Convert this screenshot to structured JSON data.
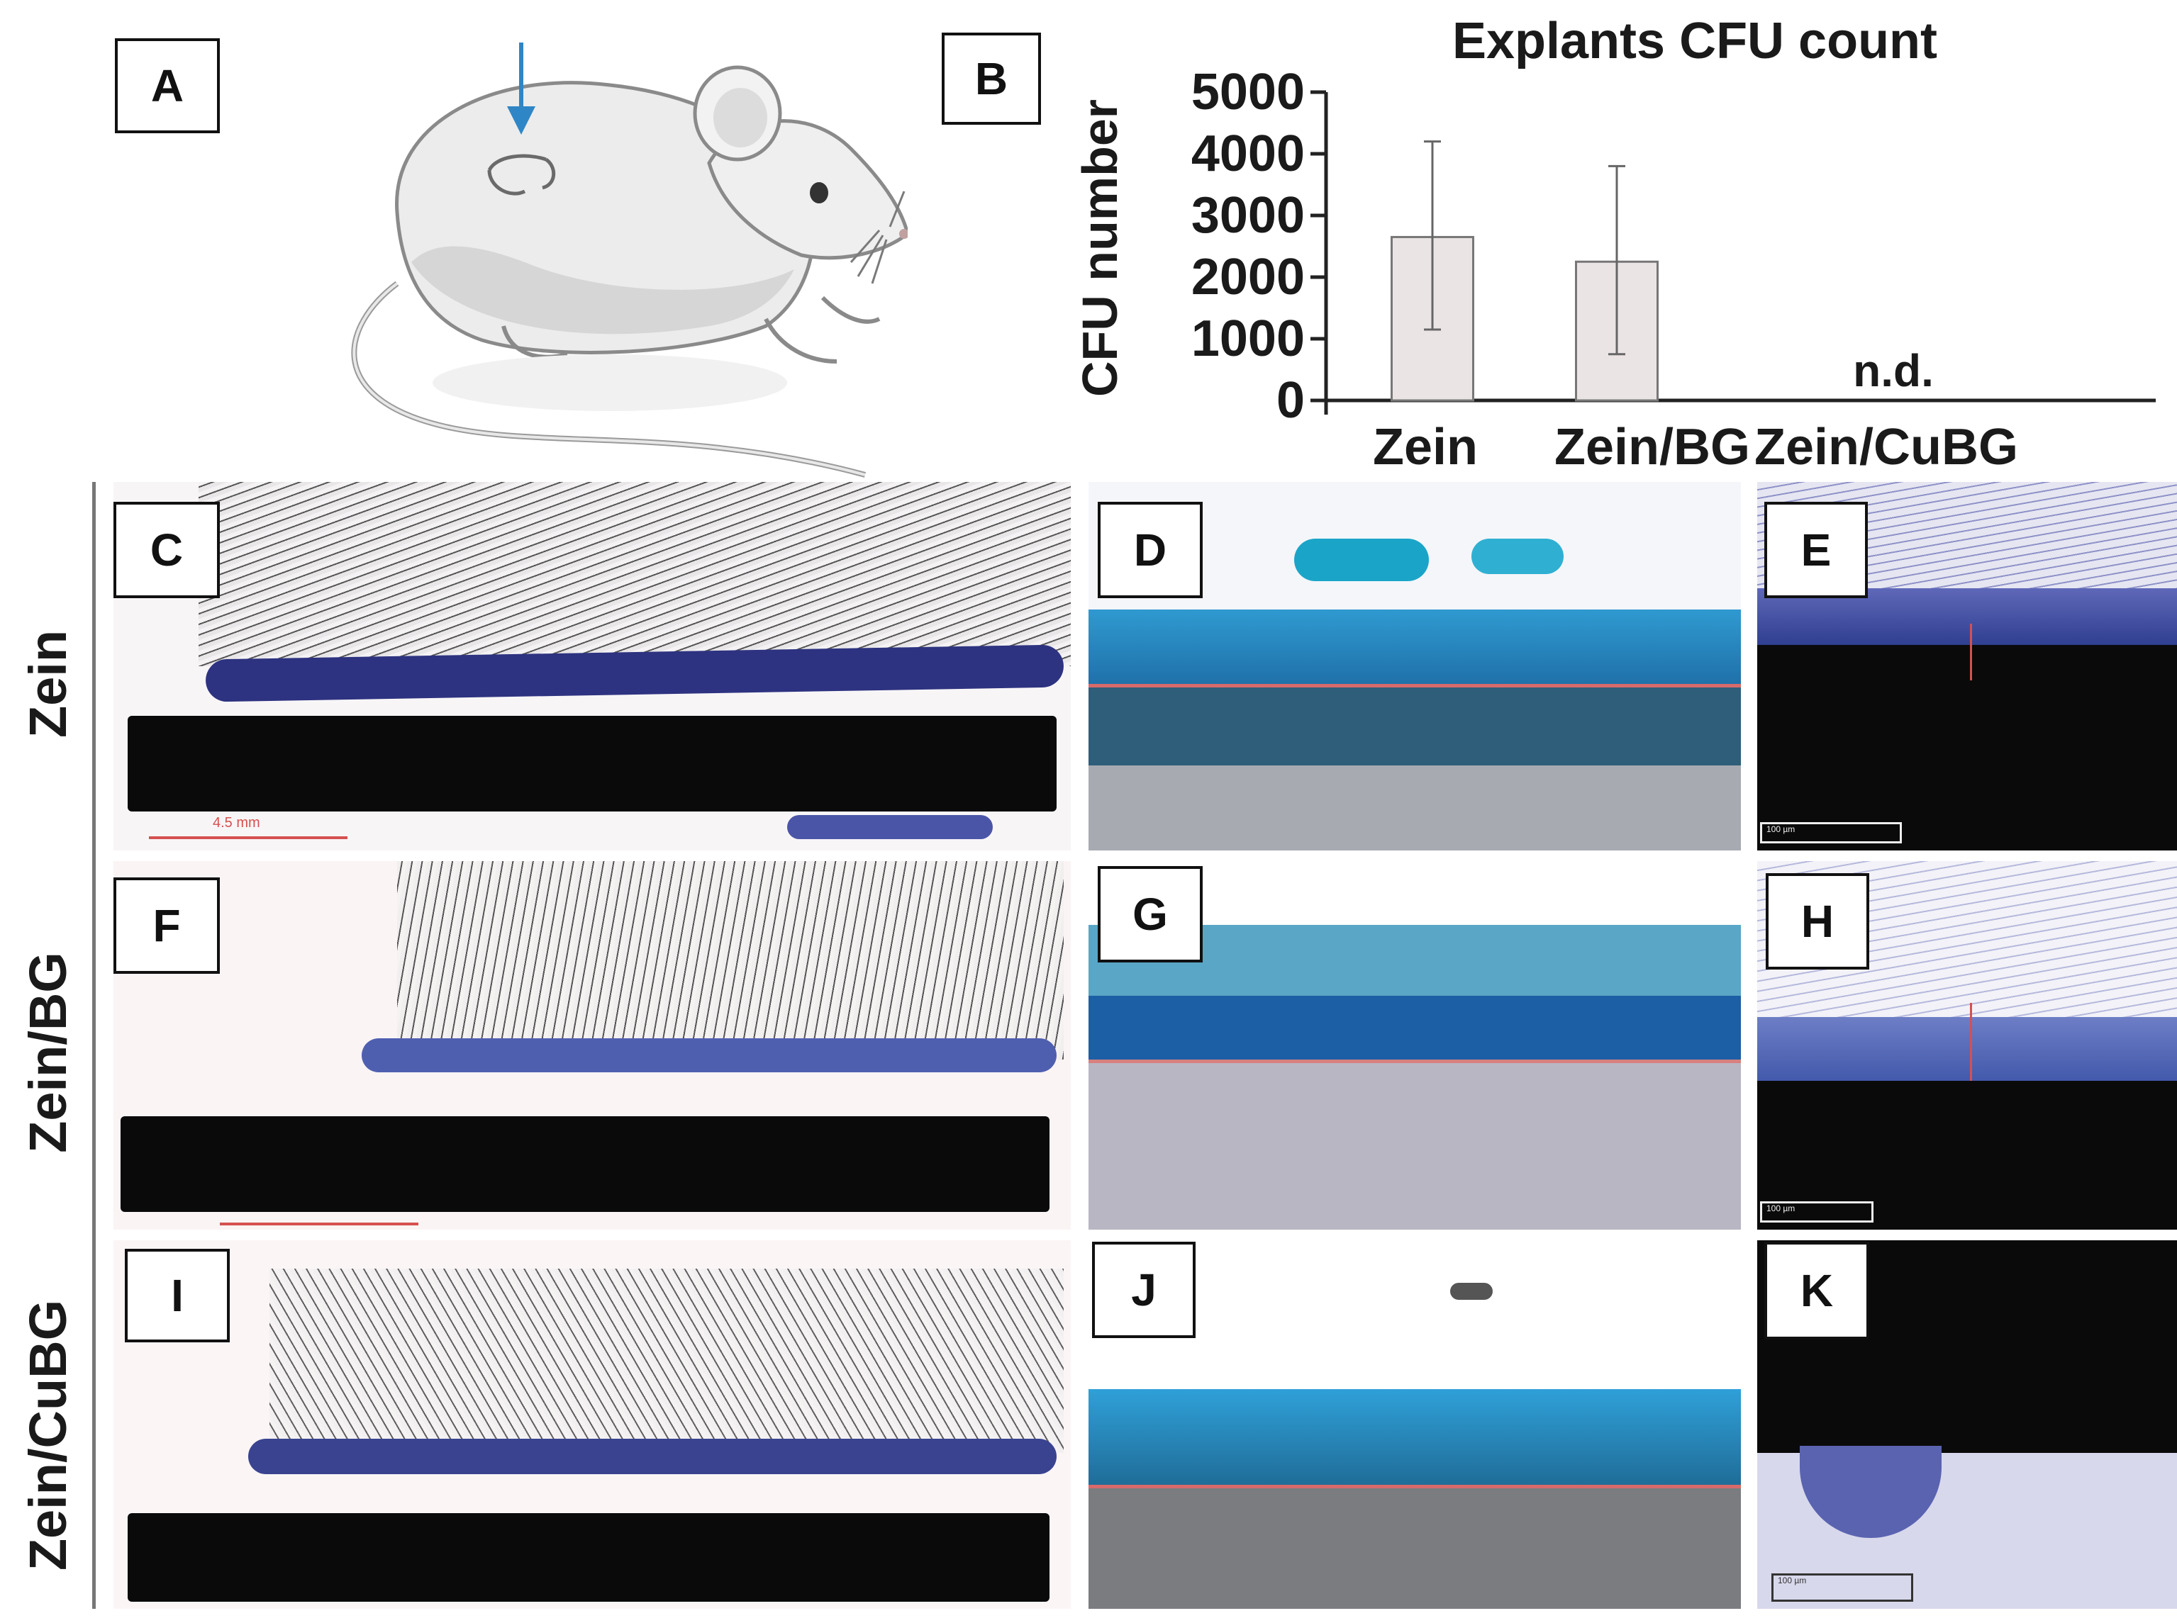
{
  "panels": {
    "A": "A",
    "B": "B",
    "C": "C",
    "D": "D",
    "E": "E",
    "F": "F",
    "G": "G",
    "H": "H",
    "I": "I",
    "J": "J",
    "K": "K"
  },
  "rows": [
    "Zein",
    "Zein/BG",
    "Zein/CuBG"
  ],
  "scale_label_c": "4.5 mm",
  "scale_label_small": "100 µm",
  "chart_data": {
    "type": "bar",
    "title": "Explants CFU count",
    "ylabel": "CFU number",
    "xlabel": "",
    "categories": [
      "Zein",
      "Zein/BG",
      "Zein/CuBG"
    ],
    "values": [
      2650,
      2250,
      0
    ],
    "error_low": [
      1150,
      750,
      null
    ],
    "error_high": [
      4200,
      3800,
      null
    ],
    "annotations": [
      {
        "category": "Zein/CuBG",
        "text": "n.d."
      }
    ],
    "ylim": [
      0,
      5000
    ],
    "yticks": [
      0,
      1000,
      2000,
      3000,
      4000,
      5000
    ],
    "bar_color": "#ebe4e4",
    "grid": false
  }
}
